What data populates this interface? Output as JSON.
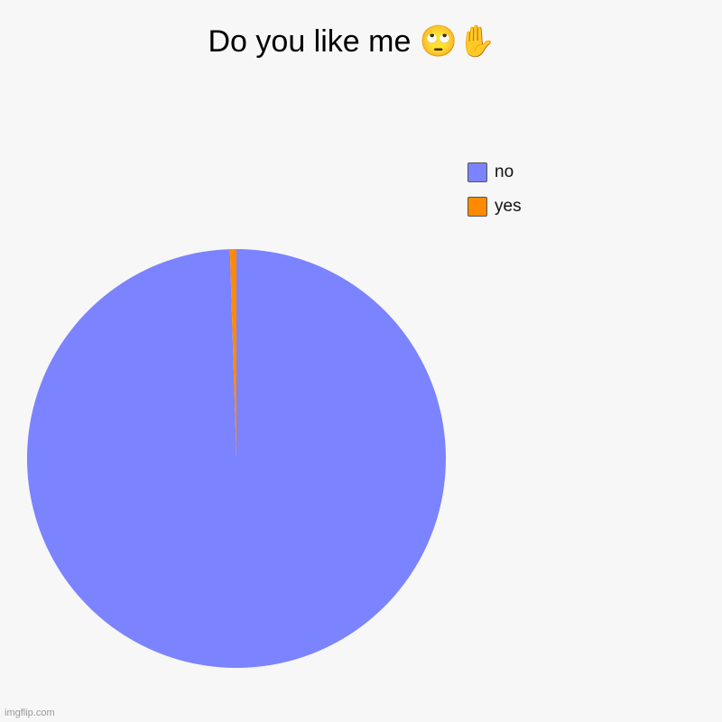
{
  "chart_data": {
    "type": "pie",
    "title": "Do you like me 🙄✋",
    "categories": [
      "no",
      "yes"
    ],
    "values": [
      99.5,
      0.5
    ],
    "colors": [
      "#7b83ff",
      "#ff8a00"
    ],
    "legend_position": "top-right"
  },
  "watermark": "imgflip.com"
}
